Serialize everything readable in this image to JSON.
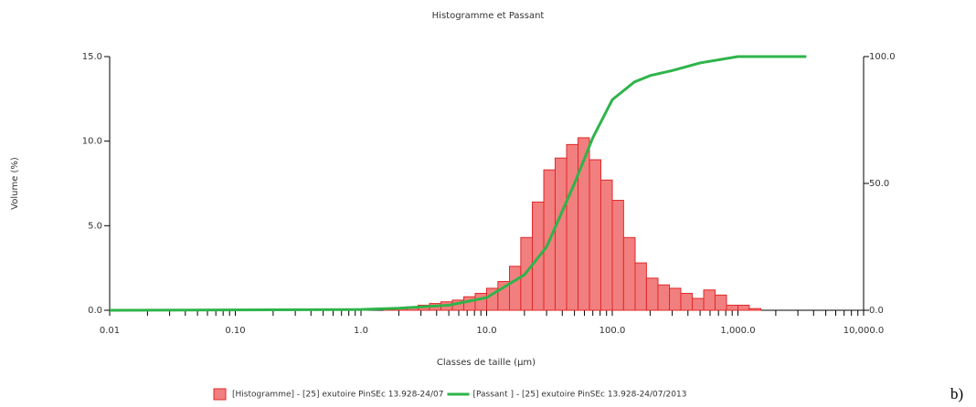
{
  "chart_data": {
    "type": "histogram",
    "title": "Histogramme et Passant",
    "x_label": "Classes de taille  (µm)",
    "y_label": "Volume  (%)",
    "annotation": "b)",
    "xscale": "log",
    "xlim": [
      0.01,
      10000
    ],
    "xticks": [
      0.01,
      {
        "value": 0.1,
        "label": "0.10"
      },
      {
        "value": 1,
        "label": "1.0"
      },
      {
        "value": 10,
        "label": "10.0"
      },
      {
        "value": 100,
        "label": "100.0"
      },
      {
        "value": 1000,
        "label": "1,000.0"
      },
      {
        "value": 10000,
        "label": "10,000.0"
      }
    ],
    "xminorticks": [
      0.02,
      0.03,
      0.04,
      0.05,
      0.06,
      0.07,
      0.08,
      0.09,
      0.2,
      0.3,
      0.4,
      0.5,
      0.6,
      0.7,
      0.8,
      0.9,
      2,
      3,
      4,
      5,
      6,
      7,
      8,
      9,
      20,
      30,
      40,
      50,
      60,
      70,
      80,
      90,
      200,
      300,
      400,
      500,
      600,
      700,
      800,
      900,
      2000,
      3000,
      4000,
      5000,
      6000,
      7000,
      8000,
      9000
    ],
    "ylim": [
      0,
      15
    ],
    "yticks": [
      {
        "value": 0,
        "label": "0.0"
      },
      {
        "value": 5,
        "label": "5.0"
      },
      {
        "value": 10,
        "label": "10.0"
      },
      {
        "value": 15,
        "label": "15.0"
      }
    ],
    "y2lim": [
      0,
      100
    ],
    "y2ticks": [
      {
        "value": 0,
        "label": "0.0"
      },
      {
        "value": 50,
        "label": "50.0"
      },
      {
        "value": 100,
        "label": "100.0"
      }
    ],
    "series": [
      {
        "name": "[Histogramme] - [25] exutoire PinSEc 13.928-24/07",
        "type": "histogram",
        "color": "#f27f7f",
        "edge_color": "#e02828",
        "bins": [
          1.52,
          1.87,
          2.31,
          2.85,
          3.51,
          4.33,
          5.34,
          6.58,
          8.11,
          10,
          12.3,
          15.2,
          18.7,
          23.1,
          28.5,
          35.1,
          43.3,
          53.4,
          65.8,
          81.1,
          100,
          123,
          152,
          187,
          231,
          285,
          351,
          433,
          534,
          658,
          811,
          1000,
          1230,
          1520
        ],
        "values": [
          0.1,
          0.15,
          0.2,
          0.3,
          0.4,
          0.5,
          0.6,
          0.8,
          1.0,
          1.3,
          1.7,
          2.6,
          4.3,
          6.4,
          8.3,
          9.0,
          9.8,
          10.2,
          8.9,
          7.7,
          6.5,
          4.3,
          2.8,
          1.9,
          1.5,
          1.3,
          1.0,
          0.7,
          1.2,
          0.9,
          0.3,
          0.3,
          0.1
        ]
      },
      {
        "name": "[Passant ] - [25] exutoire PinSEc 13.928-24/07/2013",
        "type": "line",
        "axis": "y2",
        "color": "#2eb44a",
        "x": [
          0.01,
          1,
          2,
          5,
          10,
          20,
          30,
          50,
          70,
          100,
          150,
          200,
          300,
          500,
          1000,
          3500
        ],
        "values": [
          0,
          0.3,
          0.8,
          2,
          5,
          14,
          25,
          50,
          68,
          83,
          90,
          92.5,
          94.5,
          97.5,
          100,
          100
        ]
      }
    ]
  }
}
